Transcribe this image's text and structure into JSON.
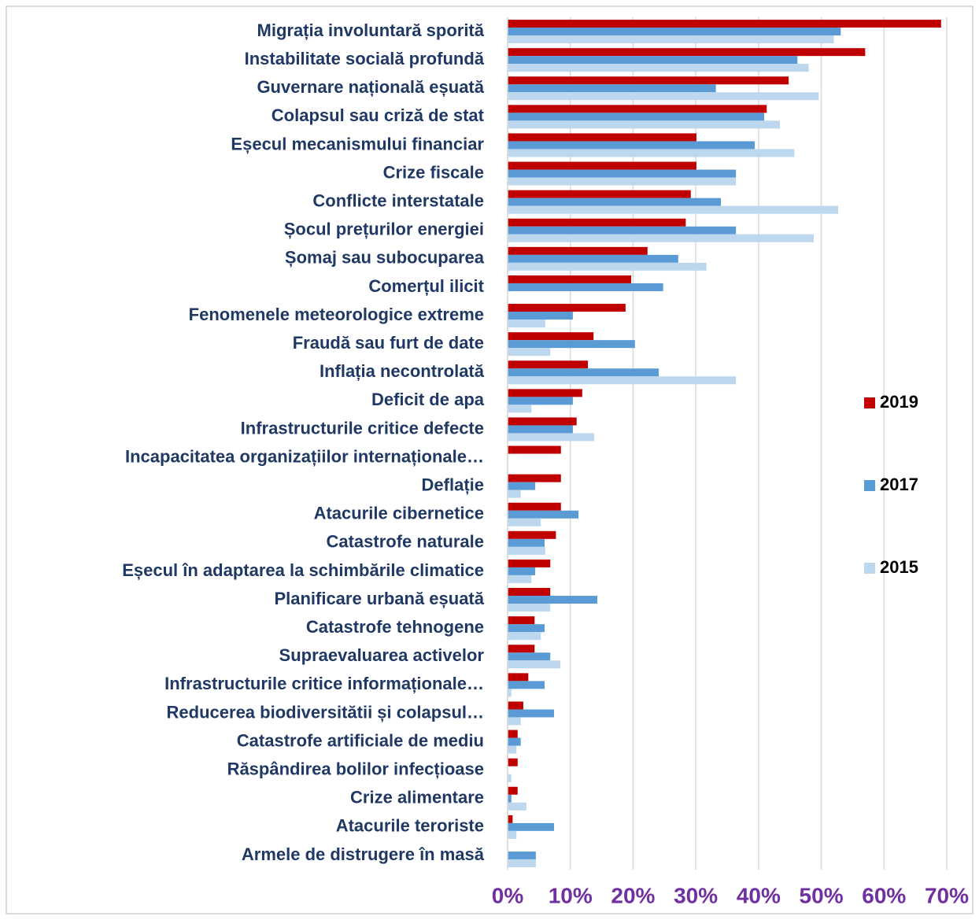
{
  "chart_data": {
    "type": "hbar",
    "categories": [
      "Migrația involuntară sporită",
      "Instabilitate socială profundă",
      "Guvernare națională eșuată",
      "Colapsul sau criză de stat",
      "Eșecul mecanismului financiar",
      "Crize fiscale",
      "Conflicte interstatale",
      "Șocul prețurilor energiei",
      "Șomaj sau subocuparea",
      "Comerțul ilicit",
      "Fenomenele meteorologice extreme",
      "Fraudă sau furt de date",
      "Inflația necontrolată",
      "Deficit de apa",
      "Infrastructurile critice defecte",
      "Incapacitatea organizațiilor internaționale…",
      "Deflație",
      "Atacurile cibernetice",
      "Catastrofe naturale",
      "Eșecul în adaptarea la schimbările climatice",
      "Planificare urbană eșuată",
      "Catastrofe tehnogene",
      "Supraevaluarea activelor",
      "Infrastructurile critice informaționale…",
      "Reducerea biodiversitătii și colapsul…",
      "Catastrofe artificiale de mediu",
      "Răspândirea bolilor infecțioase",
      "Crize alimentare",
      "Atacurile teroriste",
      "Armele de distrugere în masă"
    ],
    "series": [
      {
        "name": "2019",
        "color": "#c00000",
        "values": [
          69.1,
          57,
          44.8,
          41.3,
          30.1,
          30.1,
          29.2,
          28.4,
          22.3,
          19.7,
          18.8,
          13.7,
          12.8,
          11.9,
          11,
          8.5,
          8.5,
          8.5,
          7.7,
          6.8,
          6.8,
          4.3,
          4.3,
          3.3,
          2.5,
          1.6,
          1.6,
          1.6,
          0.8,
          0
        ]
      },
      {
        "name": "2017",
        "color": "#5b9bd5",
        "values": [
          53.1,
          46.2,
          33.2,
          40.9,
          39.4,
          36.4,
          34,
          36.4,
          27.2,
          24.8,
          10.4,
          20.3,
          24.1,
          10.4,
          10.4,
          0,
          4.4,
          11.3,
          5.9,
          4.4,
          14.3,
          5.9,
          6.8,
          5.9,
          7.4,
          2.1,
          0,
          0.6,
          7.4,
          4.5
        ]
      },
      {
        "name": "2015",
        "color": "#bdd7ee",
        "values": [
          52,
          48,
          49.6,
          43.4,
          45.7,
          36.4,
          52.7,
          48.8,
          31.7,
          0,
          6,
          6.8,
          36.4,
          3.8,
          13.8,
          0,
          2.1,
          5.3,
          6,
          3.8,
          6.8,
          5.3,
          8.4,
          0.6,
          2.1,
          1.4,
          0.6,
          3,
          1.4,
          4.5
        ]
      }
    ],
    "xlim": [
      0,
      70
    ],
    "xticks": [
      {
        "value": 0,
        "label": "0%"
      },
      {
        "value": 10,
        "label": "10%"
      },
      {
        "value": 20,
        "label": "20%"
      },
      {
        "value": 30,
        "label": "30%"
      },
      {
        "value": 40,
        "label": "40%"
      },
      {
        "value": 50,
        "label": "50%"
      },
      {
        "value": 60,
        "label": "60%"
      },
      {
        "value": 70,
        "label": "70%"
      }
    ],
    "grid": true,
    "legend": "right"
  }
}
